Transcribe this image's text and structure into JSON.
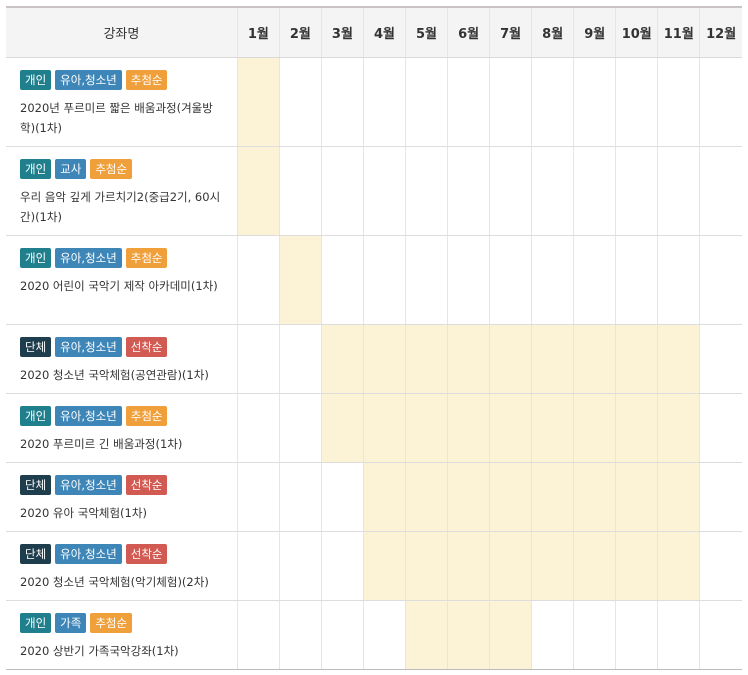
{
  "header": {
    "course_label": "강좌명",
    "months": [
      "1월",
      "2월",
      "3월",
      "4월",
      "5월",
      "6월",
      "7월",
      "8월",
      "9월",
      "10월",
      "11월",
      "12월"
    ]
  },
  "colors": {
    "individual": "#1f7f8c",
    "group": "#1e3d4d",
    "target": "#3f86b8",
    "lottery": "#efa03b",
    "first_come": "#d15a52",
    "active_month": "#fcf2d5"
  },
  "courses": [
    {
      "tags": [
        {
          "text": "개인",
          "kind": "individual"
        },
        {
          "text": "유아,청소년",
          "kind": "target"
        },
        {
          "text": "추첨순",
          "kind": "lottery"
        }
      ],
      "title": "2020년 푸르미르 짧은 배움과정(겨울방학)(1차)",
      "months": [
        1
      ]
    },
    {
      "tags": [
        {
          "text": "개인",
          "kind": "individual"
        },
        {
          "text": "교사",
          "kind": "target"
        },
        {
          "text": "추첨순",
          "kind": "lottery"
        }
      ],
      "title": "우리 음악 깊게 가르치기2(중급2기, 60시간)(1차)",
      "months": [
        1
      ]
    },
    {
      "tags": [
        {
          "text": "개인",
          "kind": "individual"
        },
        {
          "text": "유아,청소년",
          "kind": "target"
        },
        {
          "text": "추첨순",
          "kind": "lottery"
        }
      ],
      "title": "2020 어린이 국악기 제작 아카데미(1차)",
      "months": [
        2
      ]
    },
    {
      "tags": [
        {
          "text": "단체",
          "kind": "group"
        },
        {
          "text": "유아,청소년",
          "kind": "target"
        },
        {
          "text": "선착순",
          "kind": "first_come"
        }
      ],
      "title": "2020 청소년 국악체험(공연관람)(1차)",
      "months": [
        3,
        4,
        5,
        6,
        7,
        8,
        9,
        10,
        11
      ]
    },
    {
      "tags": [
        {
          "text": "개인",
          "kind": "individual"
        },
        {
          "text": "유아,청소년",
          "kind": "target"
        },
        {
          "text": "추첨순",
          "kind": "lottery"
        }
      ],
      "title": "2020 푸르미르 긴 배움과정(1차)",
      "months": [
        3,
        4,
        5,
        6,
        7,
        8,
        9,
        10,
        11
      ]
    },
    {
      "tags": [
        {
          "text": "단체",
          "kind": "group"
        },
        {
          "text": "유아,청소년",
          "kind": "target"
        },
        {
          "text": "선착순",
          "kind": "first_come"
        }
      ],
      "title": "2020 유아 국악체험(1차)",
      "months": [
        4,
        5,
        6,
        7,
        8,
        9,
        10,
        11
      ]
    },
    {
      "tags": [
        {
          "text": "단체",
          "kind": "group"
        },
        {
          "text": "유아,청소년",
          "kind": "target"
        },
        {
          "text": "선착순",
          "kind": "first_come"
        }
      ],
      "title": "2020 청소년 국악체험(악기체험)(2차)",
      "months": [
        4,
        5,
        6,
        7,
        8,
        9,
        10,
        11
      ]
    },
    {
      "tags": [
        {
          "text": "개인",
          "kind": "individual"
        },
        {
          "text": "가족",
          "kind": "target"
        },
        {
          "text": "추첨순",
          "kind": "lottery"
        }
      ],
      "title": "2020 상반기 가족국악강좌(1차)",
      "months": [
        5,
        6,
        7
      ]
    }
  ]
}
